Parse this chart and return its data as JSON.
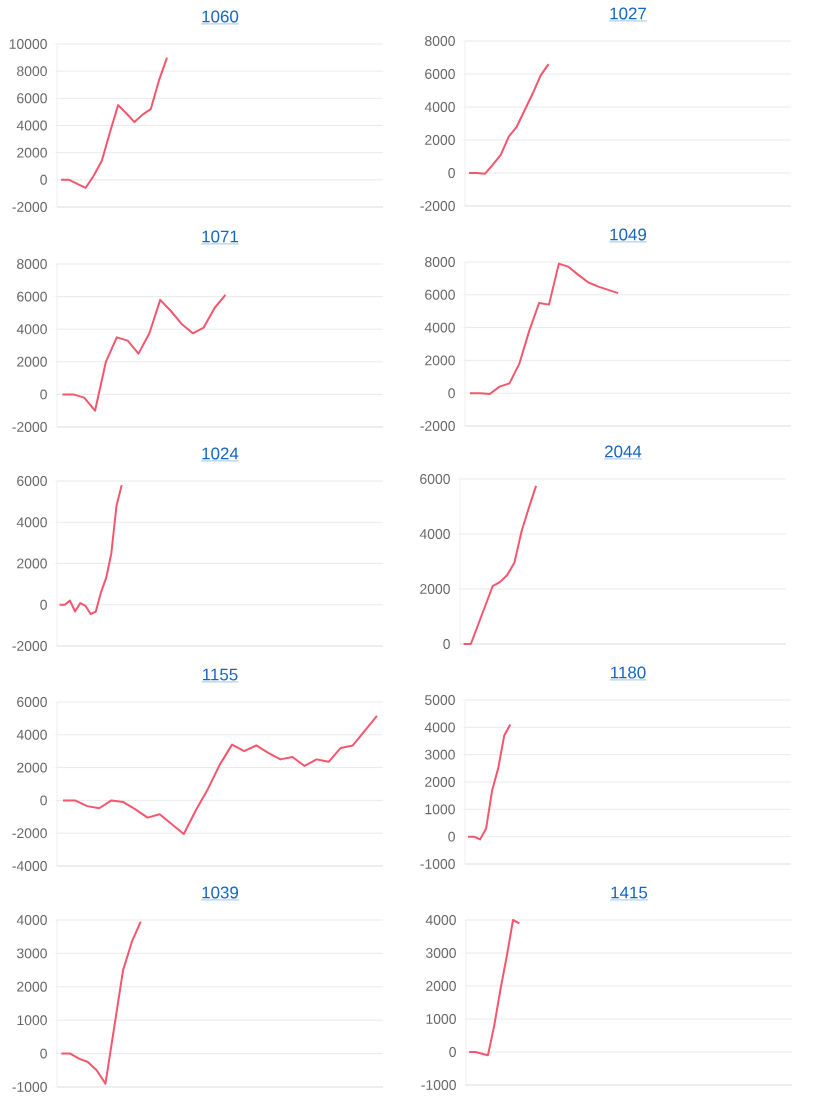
{
  "chart_data": [
    {
      "type": "line",
      "title": "1060",
      "color": "#f4566e",
      "grid": "y",
      "tick_labels": "y",
      "ylim": [
        -2000,
        10000
      ],
      "yticks": [
        -2000,
        0,
        2000,
        4000,
        6000,
        8000,
        10000
      ],
      "categories": [
        null,
        null,
        null,
        null,
        null,
        null,
        null,
        null,
        null,
        null,
        null,
        null,
        null,
        null,
        null,
        null,
        null,
        null,
        null,
        null,
        null,
        null,
        null,
        null,
        null,
        null,
        null,
        null,
        null,
        null,
        null,
        null,
        null,
        null,
        null,
        null,
        null,
        null,
        null,
        null
      ],
      "values": [
        0,
        0,
        -300,
        -600,
        300,
        1400,
        3500,
        5500,
        4900,
        4250,
        4800,
        5200,
        7300,
        9000,
        null,
        null,
        null,
        null,
        null,
        null,
        null,
        null,
        null,
        null,
        null,
        null,
        null,
        null,
        null,
        null,
        null,
        null,
        null,
        null,
        null,
        null,
        null,
        null,
        null,
        null
      ]
    },
    {
      "type": "line",
      "title": "1027",
      "color": "#f4566e",
      "grid": "y",
      "tick_labels": "y",
      "ylim": [
        -2000,
        8000
      ],
      "yticks": [
        -2000,
        0,
        2000,
        4000,
        6000,
        8000
      ],
      "categories": [
        null,
        null,
        null,
        null,
        null,
        null,
        null,
        null,
        null,
        null,
        null,
        null,
        null,
        null,
        null,
        null,
        null,
        null,
        null,
        null,
        null,
        null,
        null,
        null,
        null,
        null,
        null,
        null,
        null,
        null,
        null,
        null,
        null,
        null,
        null,
        null,
        null,
        null,
        null,
        null,
        null
      ],
      "values": [
        0,
        0,
        -50,
        500,
        1100,
        2200,
        2800,
        3800,
        4800,
        5900,
        6600,
        null,
        null,
        null,
        null,
        null,
        null,
        null,
        null,
        null,
        null,
        null,
        null,
        null,
        null,
        null,
        null,
        null,
        null,
        null,
        null,
        null,
        null,
        null,
        null,
        null,
        null,
        null,
        null,
        null,
        null
      ]
    },
    {
      "type": "line",
      "title": "1071",
      "color": "#f4566e",
      "grid": "y",
      "tick_labels": "y",
      "ylim": [
        -2000,
        8000
      ],
      "yticks": [
        -2000,
        0,
        2000,
        4000,
        6000,
        8000
      ],
      "categories": [
        null,
        null,
        null,
        null,
        null,
        null,
        null,
        null,
        null,
        null,
        null,
        null,
        null,
        null,
        null,
        null,
        null,
        null,
        null,
        null,
        null,
        null,
        null,
        null,
        null,
        null,
        null,
        null,
        null,
        null
      ],
      "values": [
        0,
        0,
        -200,
        -1000,
        2000,
        3500,
        3300,
        2500,
        3750,
        5800,
        5100,
        4300,
        3750,
        4100,
        5300,
        6100,
        null,
        null,
        null,
        null,
        null,
        null,
        null,
        null,
        null,
        null,
        null,
        null,
        null,
        null
      ]
    },
    {
      "type": "line",
      "title": "1049",
      "color": "#f4566e",
      "grid": "y",
      "tick_labels": "y",
      "ylim": [
        -2000,
        8000
      ],
      "yticks": [
        -2000,
        0,
        2000,
        4000,
        6000,
        8000
      ],
      "categories": [
        null,
        null,
        null,
        null,
        null,
        null,
        null,
        null,
        null,
        null,
        null,
        null,
        null,
        null,
        null,
        null,
        null,
        null,
        null,
        null,
        null,
        null,
        null,
        null,
        null,
        null,
        null,
        null,
        null,
        null,
        null,
        null,
        null
      ],
      "values": [
        0,
        0,
        -50,
        400,
        600,
        1800,
        3800,
        5500,
        5400,
        7900,
        7700,
        7200,
        6750,
        6500,
        6300,
        6100,
        null,
        null,
        null,
        null,
        null,
        null,
        null,
        null,
        null,
        null,
        null,
        null,
        null,
        null,
        null,
        null,
        null
      ]
    },
    {
      "type": "line",
      "title": "1024",
      "color": "#f4566e",
      "grid": "y",
      "tick_labels": "y",
      "ylim": [
        -2000,
        6000
      ],
      "yticks": [
        -2000,
        0,
        2000,
        4000,
        6000
      ],
      "categories": [
        null,
        null,
        null,
        null,
        null,
        null,
        null,
        null,
        null,
        null,
        null,
        null,
        null,
        null,
        null,
        null,
        null,
        null,
        null,
        null,
        null,
        null,
        null,
        null,
        null,
        null,
        null,
        null,
        null,
        null,
        null,
        null,
        null,
        null,
        null,
        null,
        null,
        null,
        null,
        null,
        null,
        null,
        null,
        null,
        null,
        null,
        null,
        null,
        null,
        null,
        null,
        null,
        null,
        null,
        null,
        null,
        null,
        null,
        null,
        null,
        null,
        null,
        null
      ],
      "values": [
        0,
        0,
        200,
        -330,
        80,
        -50,
        -450,
        -330,
        600,
        1300,
        2500,
        4800,
        5800,
        null,
        null,
        null,
        null,
        null,
        null,
        null,
        null,
        null,
        null,
        null,
        null,
        null,
        null,
        null,
        null,
        null,
        null,
        null,
        null,
        null,
        null,
        null,
        null,
        null,
        null,
        null,
        null,
        null,
        null,
        null,
        null,
        null,
        null,
        null,
        null,
        null,
        null,
        null,
        null,
        null,
        null,
        null,
        null,
        null,
        null,
        null,
        null,
        null,
        null
      ]
    },
    {
      "type": "line",
      "title": "2044",
      "color": "#f4566e",
      "grid": "y",
      "tick_labels": "y",
      "ylim": [
        0,
        6000
      ],
      "yticks": [
        0,
        2000,
        4000,
        6000
      ],
      "categories": [
        null,
        null,
        null,
        null,
        null,
        null,
        null,
        null,
        null,
        null,
        null,
        null,
        null,
        null,
        null,
        null,
        null,
        null,
        null,
        null,
        null,
        null,
        null,
        null,
        null,
        null,
        null,
        null,
        null,
        null,
        null,
        null,
        null,
        null,
        null,
        null,
        null,
        null,
        null,
        null,
        null,
        null,
        null,
        null,
        null
      ],
      "values": [
        0,
        0,
        700,
        1400,
        2100,
        2250,
        2500,
        2950,
        4100,
        4950,
        5750,
        null,
        null,
        null,
        null,
        null,
        null,
        null,
        null,
        null,
        null,
        null,
        null,
        null,
        null,
        null,
        null,
        null,
        null,
        null,
        null,
        null,
        null,
        null,
        null,
        null,
        null,
        null,
        null,
        null,
        null,
        null,
        null,
        null,
        null
      ]
    },
    {
      "type": "line",
      "title": "1155",
      "color": "#f4566e",
      "grid": "y",
      "tick_labels": "y",
      "ylim": [
        -4000,
        6000
      ],
      "yticks": [
        -4000,
        -2000,
        0,
        2000,
        4000,
        6000
      ],
      "categories": [
        null,
        null,
        null,
        null,
        null,
        null,
        null,
        null,
        null,
        null,
        null,
        null,
        null,
        null,
        null,
        null,
        null,
        null,
        null,
        null,
        null,
        null,
        null,
        null,
        null,
        null,
        null
      ],
      "values": [
        0,
        0,
        -350,
        -480,
        0,
        -100,
        -550,
        -1050,
        -850,
        -1450,
        -2050,
        -600,
        700,
        2200,
        3400,
        3000,
        3350,
        2900,
        2500,
        2650,
        2100,
        2500,
        2350,
        3200,
        3350,
        4250,
        5150
      ]
    },
    {
      "type": "line",
      "title": "1180",
      "color": "#f4566e",
      "grid": "y",
      "tick_labels": "y",
      "ylim": [
        -1000,
        5000
      ],
      "yticks": [
        -1000,
        0,
        1000,
        2000,
        3000,
        4000,
        5000
      ],
      "categories": [
        null,
        null,
        null,
        null,
        null,
        null,
        null,
        null,
        null,
        null,
        null,
        null,
        null,
        null,
        null,
        null,
        null,
        null,
        null,
        null,
        null,
        null,
        null,
        null,
        null,
        null,
        null,
        null,
        null,
        null,
        null,
        null,
        null,
        null,
        null,
        null,
        null,
        null,
        null,
        null,
        null,
        null,
        null,
        null,
        null,
        null,
        null,
        null,
        null,
        null,
        null,
        null,
        null,
        null
      ],
      "values": [
        0,
        0,
        -100,
        300,
        1700,
        2500,
        3700,
        4100,
        null,
        null,
        null,
        null,
        null,
        null,
        null,
        null,
        null,
        null,
        null,
        null,
        null,
        null,
        null,
        null,
        null,
        null,
        null,
        null,
        null,
        null,
        null,
        null,
        null,
        null,
        null,
        null,
        null,
        null,
        null,
        null,
        null,
        null,
        null,
        null,
        null,
        null,
        null,
        null,
        null,
        null,
        null,
        null,
        null,
        null
      ]
    },
    {
      "type": "line",
      "title": "1039",
      "color": "#f4566e",
      "grid": "y",
      "tick_labels": "y",
      "ylim": [
        -1000,
        4000
      ],
      "yticks": [
        -1000,
        0,
        1000,
        2000,
        3000,
        4000
      ],
      "categories": [
        null,
        null,
        null,
        null,
        null,
        null,
        null,
        null,
        null,
        null,
        null,
        null,
        null,
        null,
        null,
        null,
        null,
        null,
        null,
        null,
        null,
        null,
        null,
        null,
        null,
        null,
        null,
        null,
        null,
        null,
        null,
        null,
        null,
        null,
        null,
        null,
        null
      ],
      "values": [
        0,
        0,
        -150,
        -250,
        -500,
        -900,
        800,
        2500,
        3350,
        3950,
        null,
        null,
        null,
        null,
        null,
        null,
        null,
        null,
        null,
        null,
        null,
        null,
        null,
        null,
        null,
        null,
        null,
        null,
        null,
        null,
        null,
        null,
        null,
        null,
        null,
        null,
        null
      ]
    },
    {
      "type": "line",
      "title": "1415",
      "color": "#f4566e",
      "grid": "y",
      "tick_labels": "y",
      "ylim": [
        -1000,
        4000
      ],
      "yticks": [
        -1000,
        0,
        1000,
        2000,
        3000,
        4000
      ],
      "categories": [
        null,
        null,
        null,
        null,
        null,
        null,
        null,
        null,
        null,
        null,
        null,
        null,
        null,
        null,
        null,
        null,
        null,
        null,
        null,
        null,
        null,
        null,
        null,
        null,
        null,
        null,
        null,
        null,
        null,
        null,
        null,
        null,
        null,
        null,
        null,
        null,
        null,
        null,
        null,
        null,
        null,
        null,
        null,
        null,
        null,
        null,
        null,
        null,
        null,
        null,
        null,
        null
      ],
      "values": [
        0,
        0,
        -50,
        -100,
        800,
        1900,
        2900,
        4000,
        3900,
        null,
        null,
        null,
        null,
        null,
        null,
        null,
        null,
        null,
        null,
        null,
        null,
        null,
        null,
        null,
        null,
        null,
        null,
        null,
        null,
        null,
        null,
        null,
        null,
        null,
        null,
        null,
        null,
        null,
        null,
        null,
        null,
        null,
        null,
        null,
        null,
        null,
        null,
        null,
        null,
        null,
        null,
        null
      ]
    }
  ]
}
